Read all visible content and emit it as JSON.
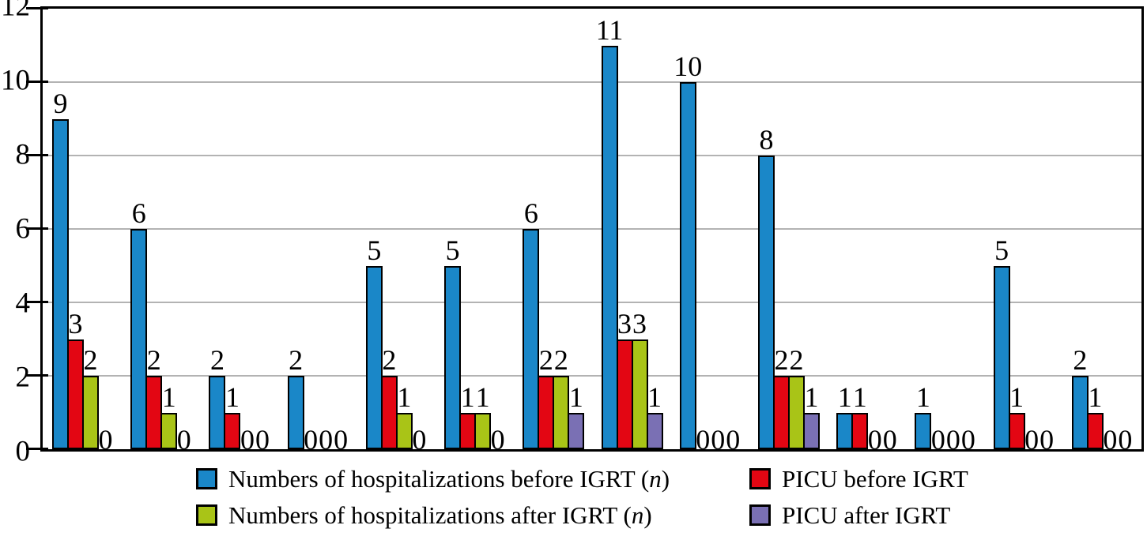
{
  "figure": {
    "background": "#ffffff",
    "axis_color": "#000000",
    "gridline_color": "#b3b3b3"
  },
  "chart_data": {
    "type": "bar",
    "title": "",
    "xlabel": "",
    "ylabel": "",
    "ylim": [
      0,
      12
    ],
    "yticks": [
      0,
      2,
      4,
      6,
      8,
      10,
      12
    ],
    "grid": true,
    "legend_position": "bottom",
    "bar_value_labels": true,
    "n_groups": 14,
    "series": [
      {
        "name": "Numbers of hospitalizations before IGRT (n)",
        "color": "#1a87c8",
        "values": [
          9,
          6,
          2,
          2,
          5,
          5,
          6,
          11,
          10,
          8,
          1,
          1,
          5,
          2
        ]
      },
      {
        "name": "PICU before IGRT",
        "color": "#e30613",
        "values": [
          3,
          2,
          1,
          0,
          2,
          1,
          2,
          3,
          0,
          2,
          1,
          0,
          1,
          1
        ]
      },
      {
        "name": "Numbers of hospitalizations after IGRT (n)",
        "color": "#a9c417",
        "values": [
          2,
          1,
          0,
          0,
          1,
          1,
          2,
          3,
          0,
          2,
          0,
          0,
          0,
          0
        ]
      },
      {
        "name": "PICU after IGRT",
        "color": "#7a70b4",
        "values": [
          0,
          0,
          0,
          0,
          0,
          0,
          1,
          1,
          0,
          1,
          0,
          0,
          0,
          0
        ]
      }
    ]
  }
}
